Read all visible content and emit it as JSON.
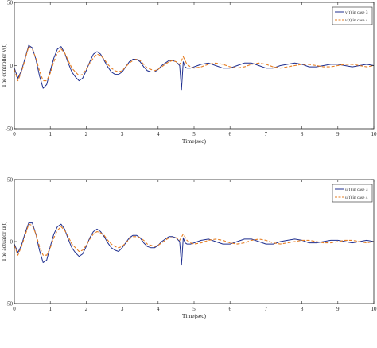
{
  "chart_data": [
    {
      "type": "line",
      "xlabel": "Time(sec)",
      "ylabel": "The controller v(t)",
      "xlim": [
        0,
        10
      ],
      "ylim": [
        -50,
        50
      ],
      "xticks": [
        "0",
        "1",
        "2",
        "3",
        "4",
        "5",
        "6",
        "7",
        "8",
        "9",
        "10"
      ],
      "yticks": [
        "50",
        "0",
        "-50"
      ],
      "legend_position": "top-right",
      "series": [
        {
          "name": "v(t) in case 3",
          "color": "#1f2f8f",
          "style": "solid",
          "x": [
            0,
            0.1,
            0.2,
            0.3,
            0.4,
            0.5,
            0.6,
            0.7,
            0.8,
            0.9,
            1.0,
            1.1,
            1.2,
            1.3,
            1.4,
            1.5,
            1.6,
            1.7,
            1.8,
            1.9,
            2.0,
            2.1,
            2.2,
            2.3,
            2.4,
            2.5,
            2.6,
            2.7,
            2.8,
            2.9,
            3.0,
            3.1,
            3.2,
            3.3,
            3.4,
            3.5,
            3.6,
            3.7,
            3.8,
            3.9,
            4.0,
            4.1,
            4.2,
            4.3,
            4.4,
            4.5,
            4.6,
            4.65,
            4.7,
            4.75,
            4.8,
            4.9,
            5.0,
            5.2,
            5.4,
            5.6,
            5.8,
            6.0,
            6.2,
            6.4,
            6.6,
            6.8,
            7.0,
            7.2,
            7.4,
            7.6,
            7.8,
            8.0,
            8.2,
            8.4,
            8.6,
            8.8,
            9.0,
            9.2,
            9.4,
            9.6,
            9.8,
            10.0
          ],
          "values": [
            -2,
            -10,
            -4,
            6,
            16,
            14,
            5,
            -8,
            -18,
            -15,
            -4,
            6,
            13,
            15,
            10,
            2,
            -5,
            -9,
            -12,
            -10,
            -4,
            3,
            9,
            11,
            9,
            4,
            -1,
            -5,
            -7,
            -7,
            -5,
            -1,
            3,
            5,
            5,
            3,
            -1,
            -4,
            -5,
            -5,
            -3,
            0,
            2,
            4,
            4,
            3,
            0,
            -19,
            3,
            -1,
            -2,
            -2,
            -1,
            1,
            2,
            0,
            -2,
            -2,
            0,
            2,
            2,
            0,
            -2,
            -2,
            0,
            1,
            2,
            1,
            -1,
            -1,
            0,
            1,
            1,
            0,
            -1,
            0,
            1,
            0
          ]
        },
        {
          "name": "v(t) in case 4",
          "color": "#e67e22",
          "style": "dashed",
          "x": [
            0,
            0.1,
            0.2,
            0.3,
            0.4,
            0.5,
            0.6,
            0.7,
            0.8,
            0.9,
            1.0,
            1.1,
            1.2,
            1.3,
            1.4,
            1.5,
            1.6,
            1.7,
            1.8,
            1.9,
            2.0,
            2.1,
            2.2,
            2.3,
            2.4,
            2.5,
            2.6,
            2.7,
            2.8,
            2.9,
            3.0,
            3.1,
            3.2,
            3.3,
            3.4,
            3.5,
            3.6,
            3.7,
            3.8,
            3.9,
            4.0,
            4.1,
            4.2,
            4.3,
            4.4,
            4.5,
            4.6,
            4.7,
            4.8,
            4.9,
            5.0,
            5.2,
            5.4,
            5.6,
            5.8,
            6.0,
            6.2,
            6.4,
            6.6,
            6.8,
            7.0,
            7.2,
            7.4,
            7.6,
            7.8,
            8.0,
            8.2,
            8.4,
            8.6,
            8.8,
            9.0,
            9.2,
            9.4,
            9.6,
            9.8,
            10.0
          ],
          "values": [
            -3,
            -12,
            -5,
            5,
            15,
            13,
            6,
            -4,
            -12,
            -12,
            -6,
            3,
            10,
            13,
            10,
            4,
            -2,
            -5,
            -8,
            -7,
            -3,
            2,
            6,
            9,
            8,
            5,
            1,
            -2,
            -4,
            -5,
            -4,
            -1,
            2,
            4,
            5,
            4,
            1,
            -2,
            -3,
            -4,
            -3,
            -1,
            1,
            3,
            4,
            3,
            1,
            7,
            1,
            -1,
            -2,
            -1,
            1,
            2,
            1,
            -1,
            -2,
            -1,
            1,
            2,
            1,
            -1,
            -2,
            -1,
            0,
            1,
            1,
            0,
            -1,
            -1,
            0,
            1,
            1,
            0,
            -1,
            0
          ]
        }
      ]
    },
    {
      "type": "line",
      "xlabel": "Time(sec)",
      "ylabel": "The actuator u(t)",
      "xlim": [
        0,
        10
      ],
      "ylim": [
        -50,
        50
      ],
      "xticks": [
        "0",
        "1",
        "2",
        "3",
        "4",
        "5",
        "6",
        "7",
        "8",
        "9",
        "10"
      ],
      "yticks": [
        "50",
        "0",
        "-50"
      ],
      "legend_position": "top-right",
      "series": [
        {
          "name": "u(t) in case 3",
          "color": "#1f2f8f",
          "style": "solid",
          "x": [
            0,
            0.1,
            0.2,
            0.3,
            0.4,
            0.5,
            0.6,
            0.7,
            0.8,
            0.9,
            1.0,
            1.1,
            1.2,
            1.3,
            1.4,
            1.5,
            1.6,
            1.7,
            1.8,
            1.9,
            2.0,
            2.1,
            2.2,
            2.3,
            2.4,
            2.5,
            2.6,
            2.7,
            2.8,
            2.9,
            3.0,
            3.1,
            3.2,
            3.3,
            3.4,
            3.5,
            3.6,
            3.7,
            3.8,
            3.9,
            4.0,
            4.1,
            4.2,
            4.3,
            4.4,
            4.5,
            4.6,
            4.65,
            4.7,
            4.75,
            4.8,
            4.9,
            5.0,
            5.2,
            5.4,
            5.6,
            5.8,
            6.0,
            6.2,
            6.4,
            6.6,
            6.8,
            7.0,
            7.2,
            7.4,
            7.6,
            7.8,
            8.0,
            8.2,
            8.4,
            8.6,
            8.8,
            9.0,
            9.2,
            9.4,
            9.6,
            9.8,
            10.0
          ],
          "values": [
            -2,
            -9,
            -3,
            7,
            15,
            15,
            6,
            -7,
            -17,
            -15,
            -4,
            6,
            12,
            14,
            10,
            2,
            -5,
            -9,
            -12,
            -10,
            -4,
            3,
            8,
            10,
            8,
            4,
            -1,
            -5,
            -7,
            -8,
            -5,
            -1,
            3,
            5,
            5,
            3,
            -1,
            -4,
            -5,
            -5,
            -3,
            0,
            2,
            4,
            4,
            3,
            0,
            -19,
            3,
            -1,
            -2,
            -2,
            -1,
            1,
            2,
            0,
            -2,
            -2,
            0,
            2,
            2,
            0,
            -2,
            -2,
            0,
            1,
            2,
            1,
            -1,
            -1,
            0,
            1,
            1,
            0,
            -1,
            0,
            1,
            0
          ]
        },
        {
          "name": "u(t) in case 4",
          "color": "#e67e22",
          "style": "dashed",
          "x": [
            0,
            0.1,
            0.2,
            0.3,
            0.4,
            0.5,
            0.6,
            0.7,
            0.8,
            0.9,
            1.0,
            1.1,
            1.2,
            1.3,
            1.4,
            1.5,
            1.6,
            1.7,
            1.8,
            1.9,
            2.0,
            2.1,
            2.2,
            2.3,
            2.4,
            2.5,
            2.6,
            2.7,
            2.8,
            2.9,
            3.0,
            3.1,
            3.2,
            3.3,
            3.4,
            3.5,
            3.6,
            3.7,
            3.8,
            3.9,
            4.0,
            4.1,
            4.2,
            4.3,
            4.4,
            4.5,
            4.6,
            4.7,
            4.8,
            4.9,
            5.0,
            5.2,
            5.4,
            5.6,
            5.8,
            6.0,
            6.2,
            6.4,
            6.6,
            6.8,
            7.0,
            7.2,
            7.4,
            7.6,
            7.8,
            8.0,
            8.2,
            8.4,
            8.6,
            8.8,
            9.0,
            9.2,
            9.4,
            9.6,
            9.8,
            10.0
          ],
          "values": [
            -3,
            -11,
            -4,
            5,
            14,
            13,
            6,
            -4,
            -11,
            -11,
            -5,
            3,
            9,
            12,
            9,
            4,
            -2,
            -5,
            -8,
            -7,
            -3,
            2,
            6,
            8,
            7,
            5,
            1,
            -2,
            -4,
            -5,
            -4,
            -1,
            2,
            4,
            4,
            3,
            1,
            -2,
            -3,
            -4,
            -3,
            -1,
            1,
            3,
            3,
            3,
            1,
            6,
            1,
            -1,
            -2,
            -1,
            1,
            2,
            1,
            -1,
            -2,
            -1,
            1,
            2,
            1,
            -1,
            -2,
            -1,
            0,
            1,
            1,
            0,
            -1,
            -1,
            0,
            1,
            1,
            0,
            -1,
            0
          ]
        }
      ]
    }
  ]
}
